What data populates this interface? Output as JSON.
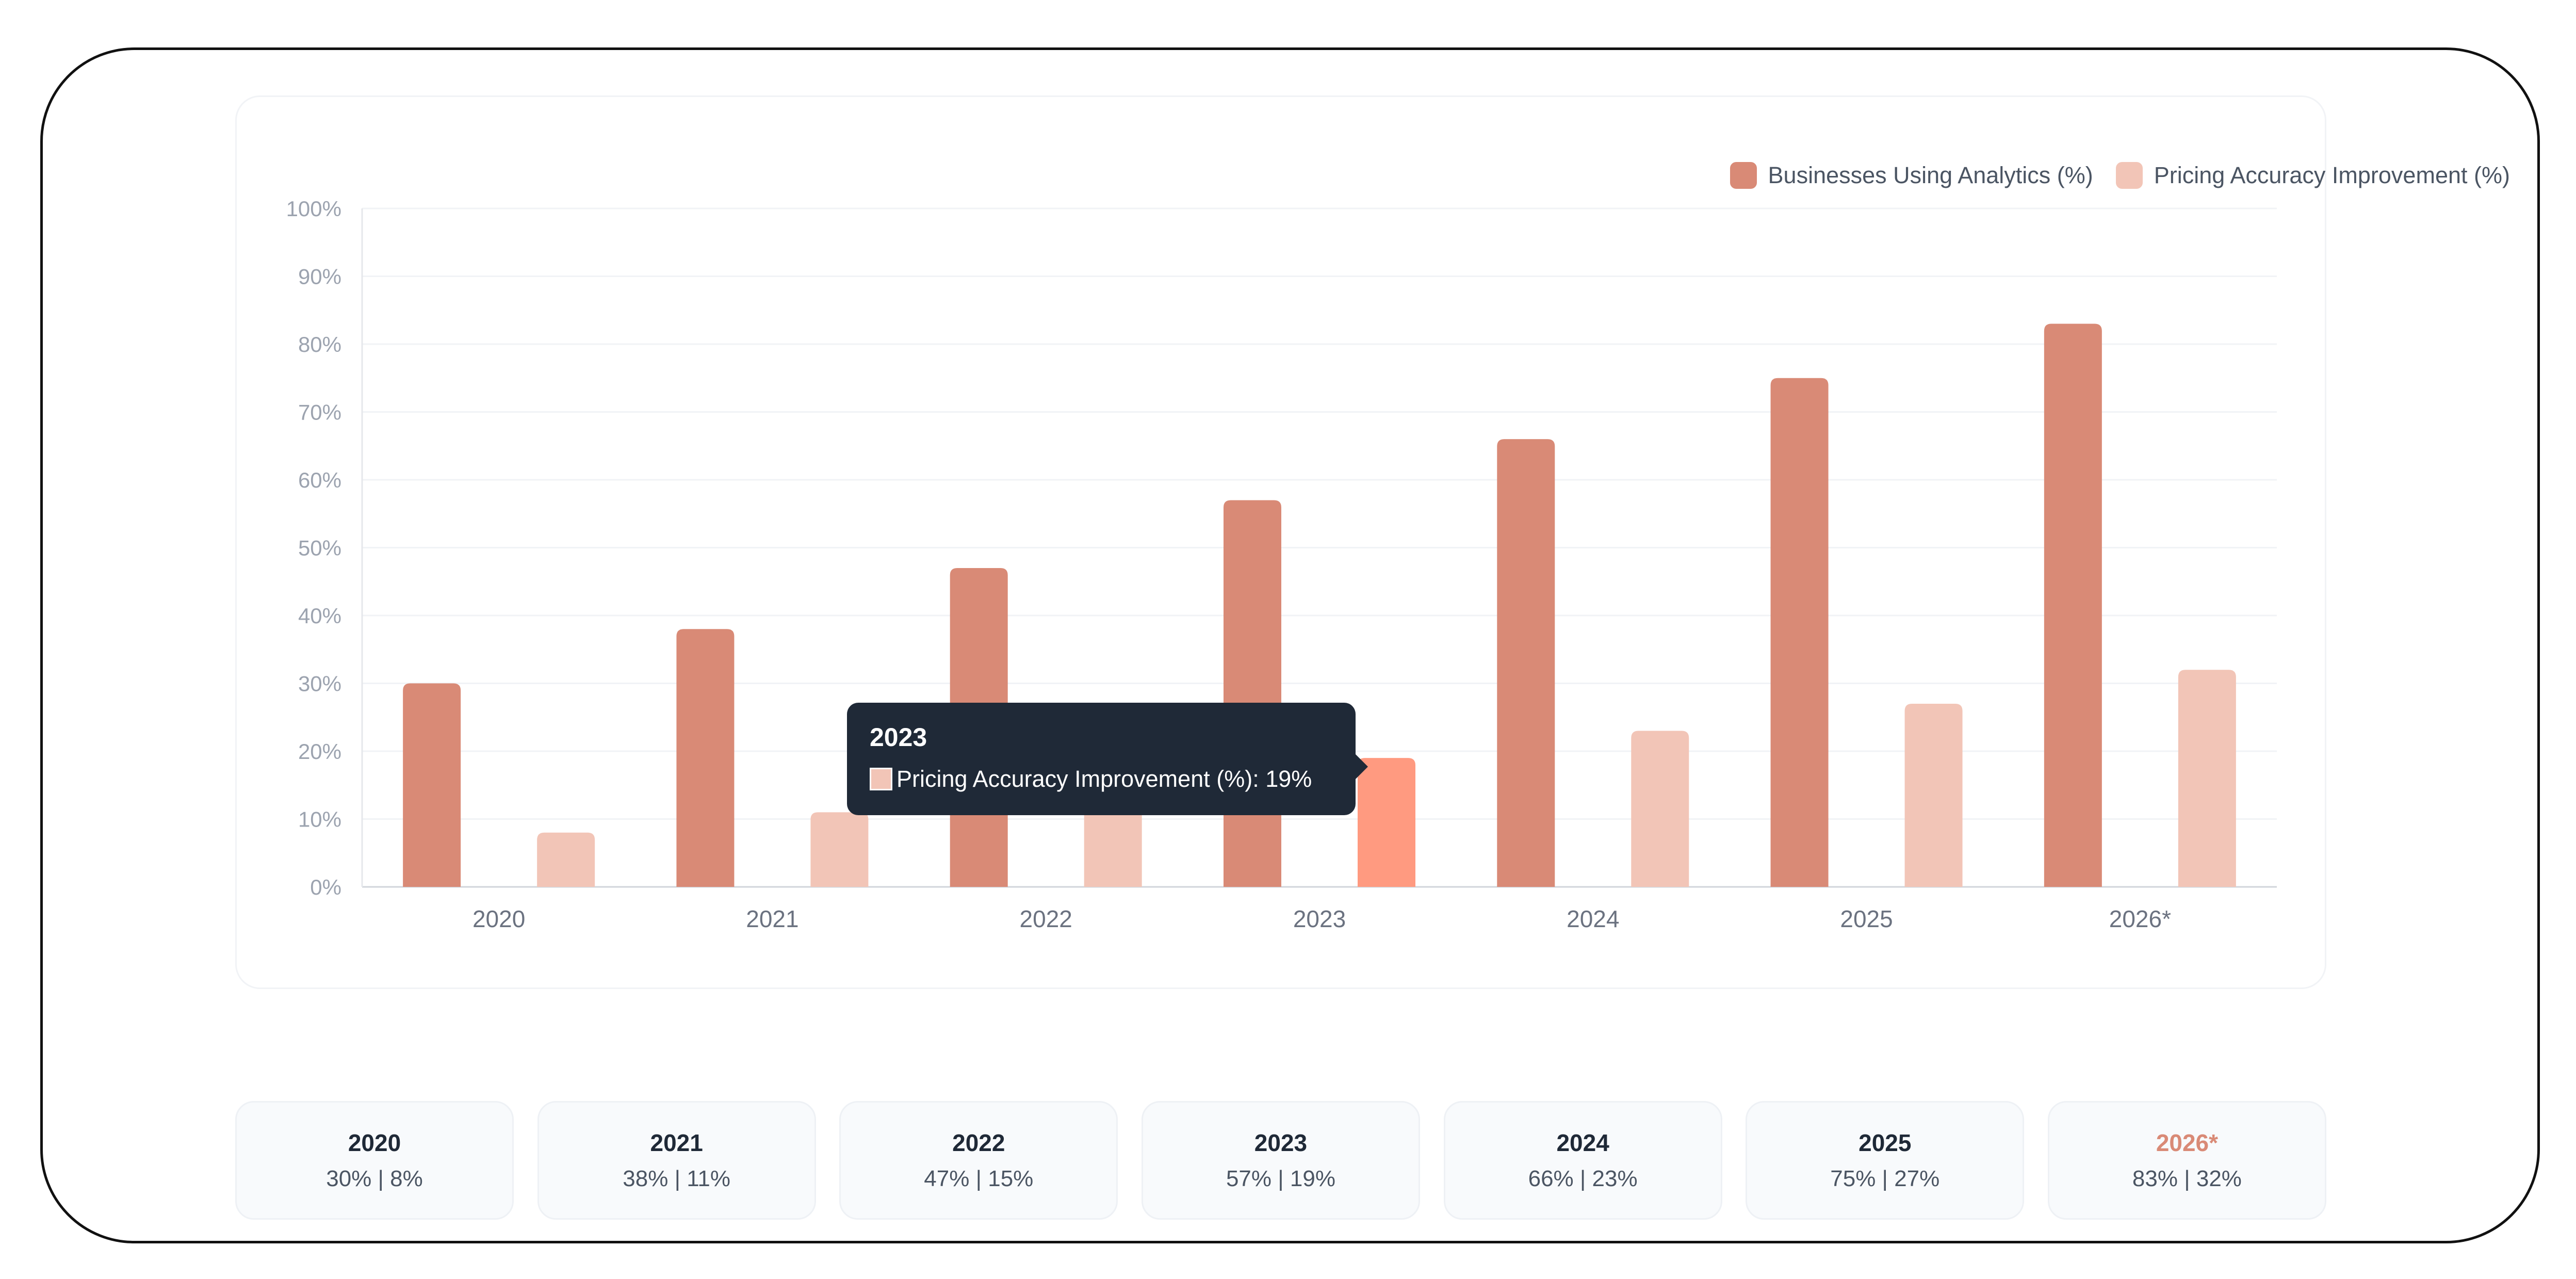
{
  "colors": {
    "analytics": "#d98a76",
    "pricing": "#f2c5b7",
    "pricing_highlight": "#ff9a80",
    "axis_text": "#9ca3af",
    "xtick_text": "#6b7280",
    "grid": "#f1f3f6"
  },
  "chart_data": {
    "type": "bar",
    "categories": [
      "2020",
      "2021",
      "2022",
      "2023",
      "2024",
      "2025",
      "2026*"
    ],
    "series": [
      {
        "name": "Businesses Using Analytics (%)",
        "values": [
          30,
          38,
          47,
          57,
          66,
          75,
          83
        ]
      },
      {
        "name": "Pricing Accuracy Improvement (%)",
        "values": [
          8,
          11,
          15,
          19,
          23,
          27,
          32
        ]
      }
    ],
    "ylim": [
      0,
      100
    ],
    "yticks": [
      "0%",
      "10%",
      "20%",
      "30%",
      "40%",
      "50%",
      "60%",
      "70%",
      "80%",
      "90%",
      "100%"
    ],
    "grid": true,
    "legend_position": "top-right",
    "highlighted": {
      "category": "2023",
      "series": "Pricing Accuracy Improvement (%)"
    }
  },
  "tooltip": {
    "title": "2023",
    "label": "Pricing Accuracy Improvement (%): 19%"
  },
  "summary": [
    {
      "year": "2020",
      "values": "30% | 8%",
      "projected": false
    },
    {
      "year": "2021",
      "values": "38% | 11%",
      "projected": false
    },
    {
      "year": "2022",
      "values": "47% | 15%",
      "projected": false
    },
    {
      "year": "2023",
      "values": "57% | 19%",
      "projected": false
    },
    {
      "year": "2024",
      "values": "66% | 23%",
      "projected": false
    },
    {
      "year": "2025",
      "values": "75% | 27%",
      "projected": false
    },
    {
      "year": "2026*",
      "values": "83% | 32%",
      "projected": true
    }
  ]
}
